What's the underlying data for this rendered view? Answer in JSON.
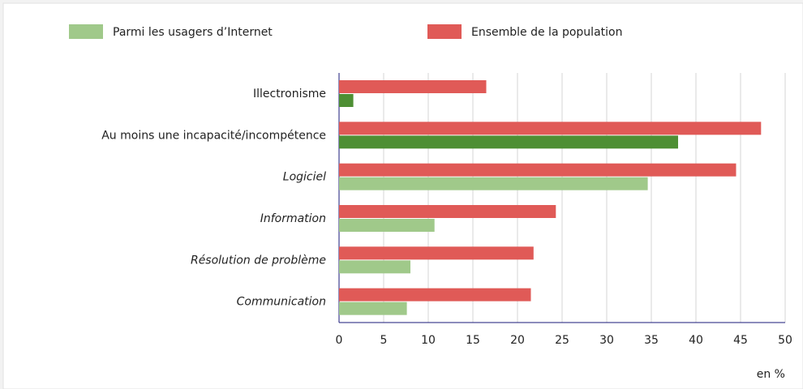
{
  "chart_data": {
    "type": "barh",
    "categories": [
      "Illectronisme",
      "Au moins une incapacité/incompétence",
      "Logiciel",
      "Information",
      "Résolution de problème",
      "Communication"
    ],
    "series": [
      {
        "name": "Ensemble de la population",
        "color": "#e05a57",
        "values": [
          16.5,
          47.3,
          44.5,
          24.3,
          21.8,
          21.5
        ]
      },
      {
        "name": "Parmi les usagers d’Internet",
        "color": "#a0c98a",
        "colors": [
          "#4e8f34",
          "#4e8f34",
          "#a0c98a",
          "#a0c98a",
          "#a0c98a",
          "#a0c98a"
        ],
        "values": [
          1.6,
          38,
          34.6,
          10.7,
          8,
          7.6
        ]
      }
    ],
    "xlim": [
      0,
      50
    ],
    "xticks": [
      0,
      5,
      10,
      15,
      20,
      25,
      30,
      35,
      40,
      45,
      50
    ],
    "xlabel": "en %",
    "grid": true
  }
}
